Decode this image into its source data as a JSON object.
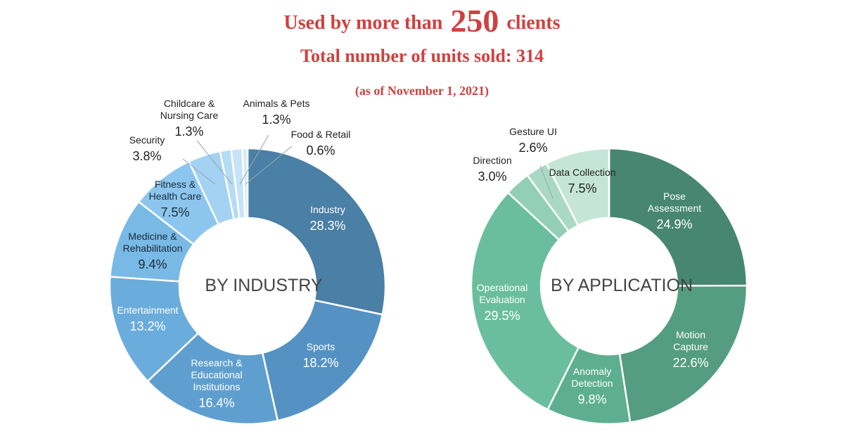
{
  "header": {
    "line1_prefix": "Used by more than",
    "line1_number": "250",
    "line1_suffix": "clients",
    "line2": "Total number of units sold: 314",
    "line3": "(as of November 1, 2021)"
  },
  "chart_data": [
    {
      "type": "pie",
      "title": "BY INDUSTRY",
      "unit": "%",
      "slices": [
        {
          "label": "Industry",
          "value": 28.3,
          "color": "#4a7fa6"
        },
        {
          "label": "Sports",
          "value": 18.2,
          "color": "#5592c3"
        },
        {
          "label": "Research & Educational Institutions",
          "value": 16.4,
          "color": "#5f9fd0"
        },
        {
          "label": "Entertainment",
          "value": 13.2,
          "color": "#6aacdc"
        },
        {
          "label": "Medicine & Rehabilitation",
          "value": 9.4,
          "color": "#79b9e6"
        },
        {
          "label": "Fitness & Health Care",
          "value": 7.5,
          "color": "#8cc6ee"
        },
        {
          "label": "Security",
          "value": 3.8,
          "color": "#a3d2f3"
        },
        {
          "label": "Childcare & Nursing Care",
          "value": 1.3,
          "color": "#b5dbf5"
        },
        {
          "label": "Animals & Pets",
          "value": 1.3,
          "color": "#c6e3f7"
        },
        {
          "label": "Food & Retail",
          "value": 0.6,
          "color": "#d6ebf9"
        }
      ]
    },
    {
      "type": "pie",
      "title": "BY APPLICATION",
      "unit": "%",
      "slices": [
        {
          "label": "Pose Assessment",
          "value": 24.9,
          "color": "#478670"
        },
        {
          "label": "Motion Capture",
          "value": 22.6,
          "color": "#549d83"
        },
        {
          "label": "Anomaly Detection",
          "value": 9.8,
          "color": "#5eae91"
        },
        {
          "label": "Operational Evaluation",
          "value": 29.5,
          "color": "#6abe9f"
        },
        {
          "label": "Direction",
          "value": 3.0,
          "color": "#92cfb6"
        },
        {
          "label": "Gesture UI",
          "value": 2.6,
          "color": "#a9d9c4"
        },
        {
          "label": "Data Collection",
          "value": 7.5,
          "color": "#c5e5d8"
        }
      ]
    }
  ]
}
